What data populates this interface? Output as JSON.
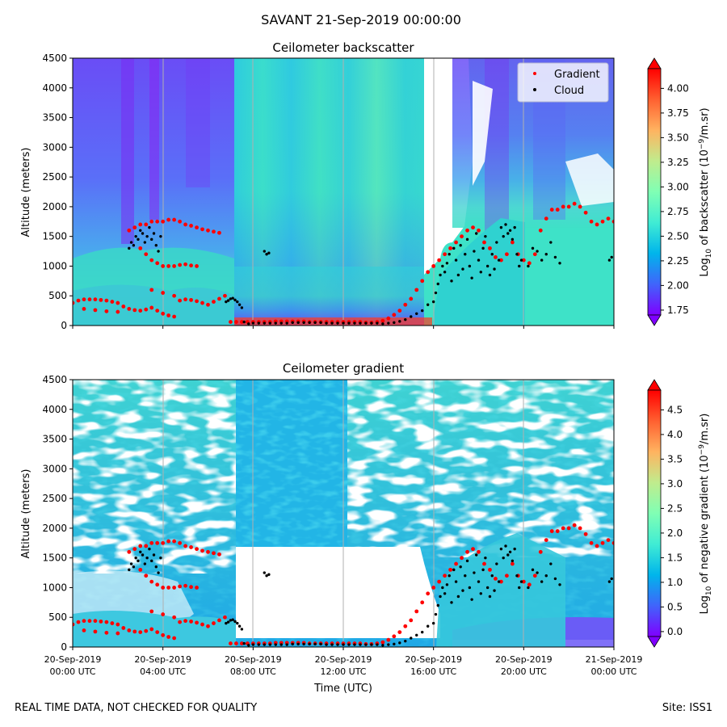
{
  "figure": {
    "title": "SAVANT 21-Sep-2019 00:00:00",
    "footer_left": "REAL TIME DATA, NOT CHECKED FOR QUALITY",
    "footer_right": "Site: ISS1"
  },
  "chart_data": [
    {
      "type": "heatmap",
      "title": "Ceilometer backscatter",
      "ylabel": "Altitude (meters)",
      "xlabel": "",
      "ylim": [
        0,
        4500
      ],
      "yticks": [
        "0",
        "500",
        "1000",
        "1500",
        "2000",
        "2500",
        "3000",
        "3500",
        "4000",
        "4500"
      ],
      "xticks": [
        {
          "line1": "20-Sep-2019",
          "line2": "00:00 UTC"
        },
        {
          "line1": "20-Sep-2019",
          "line2": "04:00 UTC"
        },
        {
          "line1": "20-Sep-2019",
          "line2": "08:00 UTC"
        },
        {
          "line1": "20-Sep-2019",
          "line2": "12:00 UTC"
        },
        {
          "line1": "20-Sep-2019",
          "line2": "16:00 UTC"
        },
        {
          "line1": "20-Sep-2019",
          "line2": "20:00 UTC"
        },
        {
          "line1": "21-Sep-2019",
          "line2": "00:00 UTC"
        }
      ],
      "colorbar": {
        "label": "Log10 of backscatter (10^-9/m.sr)",
        "ticks": [
          "1.75",
          "2.00",
          "2.25",
          "2.50",
          "2.75",
          "3.00",
          "3.25",
          "3.50",
          "3.75",
          "4.00"
        ],
        "range": [
          1.7,
          4.2
        ],
        "colormap": "rainbow"
      },
      "legend": {
        "placement": "top-right",
        "entries": [
          {
            "label": "Gradient",
            "color": "#ff0000"
          },
          {
            "label": "Cloud",
            "color": "#000000"
          }
        ]
      },
      "grid": "vertical only"
    },
    {
      "type": "heatmap",
      "title": "Ceilometer gradient",
      "ylabel": "Altitude (meters)",
      "xlabel": "Time (UTC)",
      "ylim": [
        0,
        4500
      ],
      "yticks": [
        "0",
        "500",
        "1000",
        "1500",
        "2000",
        "2500",
        "3000",
        "3500",
        "4000",
        "4500"
      ],
      "xticks": [
        {
          "line1": "20-Sep-2019",
          "line2": "00:00 UTC"
        },
        {
          "line1": "20-Sep-2019",
          "line2": "04:00 UTC"
        },
        {
          "line1": "20-Sep-2019",
          "line2": "08:00 UTC"
        },
        {
          "line1": "20-Sep-2019",
          "line2": "12:00 UTC"
        },
        {
          "line1": "20-Sep-2019",
          "line2": "16:00 UTC"
        },
        {
          "line1": "20-Sep-2019",
          "line2": "20:00 UTC"
        },
        {
          "line1": "21-Sep-2019",
          "line2": "00:00 UTC"
        }
      ],
      "colorbar": {
        "label": "Log10 of negative gradient (10^-9/m.sr)",
        "ticks": [
          "0.0",
          "0.5",
          "1.0",
          "1.5",
          "2.0",
          "2.5",
          "3.0",
          "3.5",
          "4.0",
          "4.5"
        ],
        "range": [
          -0.1,
          4.9
        ],
        "colormap": "rainbow"
      },
      "grid": "vertical only"
    }
  ],
  "gradient_points": {
    "x": [
      0,
      0.25,
      0.5,
      0.75,
      1,
      1.25,
      1.5,
      1.75,
      2,
      2.25,
      2.5,
      2.75,
      3,
      3.25,
      3.5,
      3.75,
      4,
      4.25,
      4.5,
      4.75,
      5,
      5.25,
      5.5,
      5.75,
      6,
      6.25,
      6.5,
      6.75,
      7,
      7.25,
      7.5,
      7.75,
      8,
      8.25,
      8.5,
      8.75,
      9,
      9.25,
      9.5,
      9.75,
      10,
      10.25,
      10.5,
      10.75,
      11,
      11.25,
      11.5,
      11.75,
      12,
      12.25,
      12.5,
      12.75,
      13,
      13.25,
      13.5,
      13.75,
      14,
      14.25,
      14.5,
      14.75,
      15,
      15.25,
      15.5,
      15.75,
      16,
      16.25,
      16.5,
      16.75,
      17,
      17.25,
      17.5,
      17.75,
      18,
      18.25,
      18.5,
      18.75,
      19,
      19.25,
      19.5,
      19.75,
      20,
      20.25,
      20.5,
      20.75,
      21,
      21.25,
      21.5,
      21.75,
      22,
      22.25,
      22.5,
      22.75,
      23,
      23.25,
      23.5,
      23.75,
      24,
      2.5,
      2.75,
      3,
      3.25,
      3.5,
      3.75,
      4,
      4.25,
      4.5,
      4.75,
      5,
      5.25,
      5.5,
      5.75,
      6,
      6.25,
      6.5,
      3,
      3.25,
      3.5,
      3.75,
      4,
      4.25,
      4.5,
      4.75,
      5,
      5.25,
      5.5,
      3.5,
      4,
      4.5,
      0.5,
      1,
      1.5,
      2
    ],
    "y": [
      380,
      420,
      440,
      440,
      440,
      430,
      420,
      400,
      380,
      320,
      280,
      260,
      250,
      270,
      300,
      250,
      200,
      170,
      150,
      420,
      440,
      430,
      410,
      380,
      350,
      400,
      450,
      500,
      60,
      60,
      60,
      60,
      60,
      60,
      60,
      60,
      70,
      70,
      70,
      70,
      70,
      70,
      60,
      60,
      60,
      60,
      60,
      60,
      60,
      60,
      60,
      60,
      50,
      50,
      60,
      80,
      120,
      180,
      250,
      350,
      450,
      600,
      750,
      900,
      1000,
      1100,
      1200,
      1300,
      1400,
      1500,
      1600,
      1650,
      1600,
      1400,
      1300,
      1150,
      1100,
      1200,
      1400,
      1200,
      1100,
      1050,
      1200,
      1600,
      1800,
      1950,
      1950,
      2000,
      2000,
      2050,
      2000,
      1900,
      1750,
      1700,
      1750,
      1800,
      1750,
      1600,
      1650,
      1700,
      1700,
      1750,
      1750,
      1750,
      1780,
      1780,
      1750,
      1700,
      1680,
      1650,
      1620,
      1600,
      1580,
      1560,
      1300,
      1200,
      1100,
      1050,
      1000,
      1000,
      1000,
      1020,
      1030,
      1010,
      1000,
      600,
      550,
      500,
      280,
      260,
      240,
      230
    ]
  },
  "cloud_points": {
    "x": [
      2.5,
      2.6,
      2.7,
      2.8,
      2.9,
      3.0,
      3.1,
      3.2,
      3.3,
      3.4,
      3.5,
      3.6,
      3.7,
      3.8,
      3.9,
      8.5,
      8.6,
      8.7,
      6.8,
      6.9,
      7.0,
      7.1,
      7.2,
      7.3,
      7.4,
      7.5,
      7.6,
      7.8,
      8,
      8.25,
      8.5,
      8.75,
      9,
      9.25,
      9.5,
      9.75,
      10,
      10.25,
      10.5,
      10.75,
      11,
      11.25,
      11.5,
      11.75,
      12,
      12.25,
      12.5,
      12.75,
      13,
      13.25,
      13.5,
      13.75,
      14,
      14.25,
      14.5,
      14.75,
      15,
      15.25,
      15.5,
      15.75,
      16,
      16.1,
      16.2,
      16.3,
      16.4,
      16.5,
      16.6,
      16.7,
      16.8,
      16.9,
      17,
      17.1,
      17.2,
      17.3,
      17.4,
      17.5,
      17.6,
      17.7,
      17.8,
      17.9,
      18,
      18.1,
      18.2,
      18.3,
      18.4,
      18.5,
      18.6,
      18.7,
      18.8,
      18.9,
      19,
      19.1,
      19.2,
      19.3,
      19.4,
      19.5,
      19.6,
      19.7,
      19.8,
      19.9,
      20.2,
      20.4,
      20.6,
      20.8,
      21,
      21.2,
      21.4,
      21.6,
      23.8,
      23.9
    ],
    "y": [
      1300,
      1400,
      1350,
      1500,
      1450,
      1600,
      1550,
      1400,
      1500,
      1650,
      1450,
      1550,
      1350,
      1250,
      1500,
      1250,
      1200,
      1220,
      400,
      420,
      450,
      460,
      430,
      400,
      350,
      300,
      60,
      30,
      40,
      40,
      40,
      40,
      40,
      40,
      40,
      50,
      50,
      50,
      50,
      50,
      50,
      40,
      40,
      40,
      40,
      40,
      40,
      40,
      40,
      40,
      40,
      30,
      40,
      50,
      70,
      100,
      150,
      200,
      250,
      350,
      400,
      550,
      700,
      850,
      1000,
      900,
      1050,
      1200,
      750,
      1300,
      1100,
      850,
      1350,
      950,
      1200,
      1450,
      1000,
      800,
      1250,
      1550,
      1100,
      900,
      1300,
      1500,
      1000,
      850,
      1200,
      950,
      1400,
      1100,
      1650,
      1500,
      1700,
      1550,
      1600,
      1450,
      1650,
      1200,
      1000,
      1100,
      1000,
      1300,
      1250,
      1100,
      1200,
      1400,
      1150,
      1050,
      1100,
      1150
    ]
  }
}
